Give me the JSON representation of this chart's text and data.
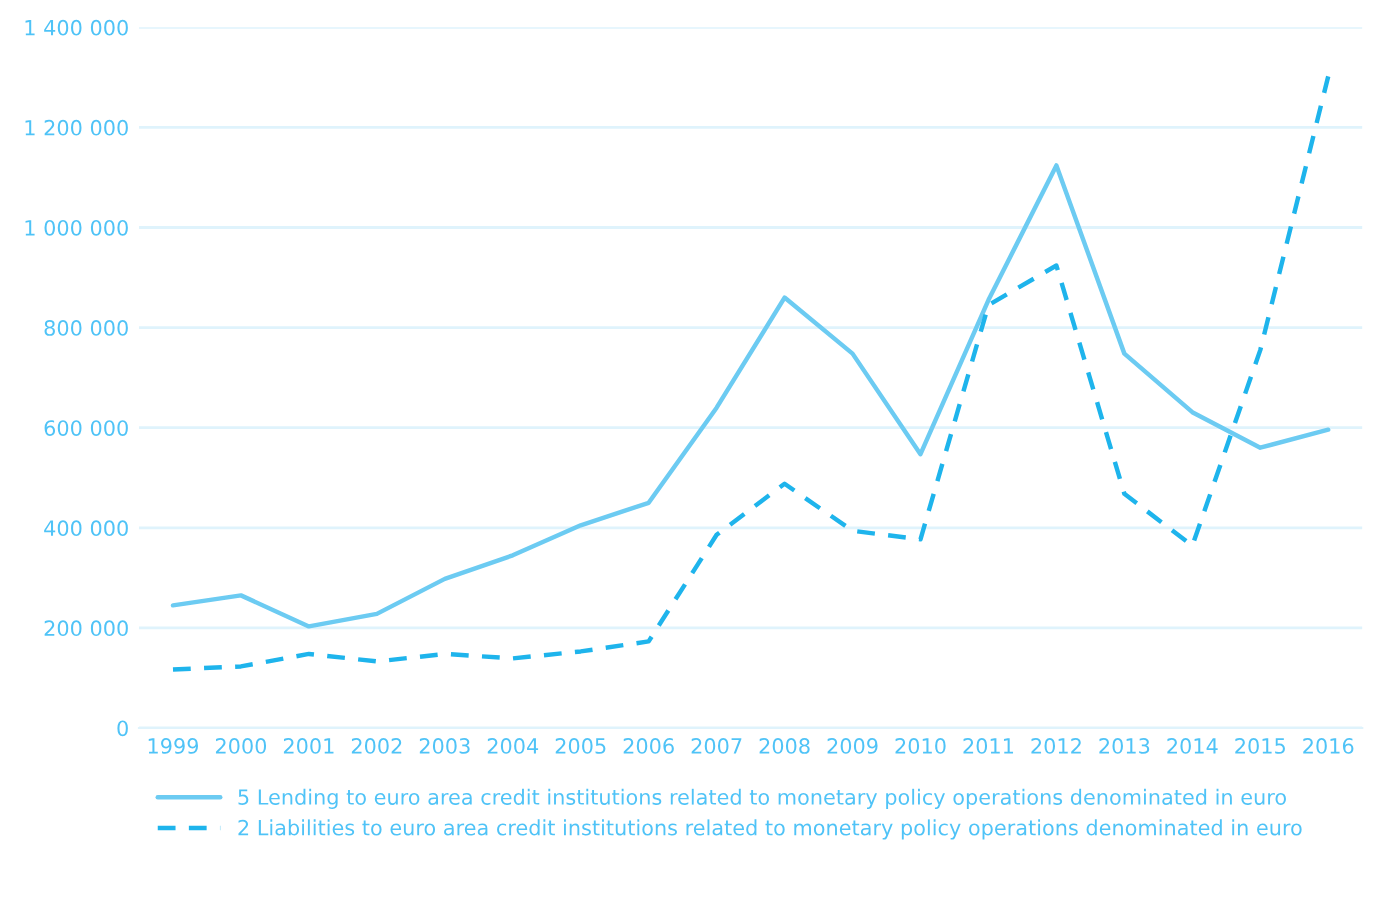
{
  "chart_data": {
    "type": "line",
    "categories": [
      "1999",
      "2000",
      "2001",
      "2002",
      "2003",
      "2004",
      "2005",
      "2006",
      "2007",
      "2008",
      "2009",
      "2010",
      "2011",
      "2012",
      "2013",
      "2014",
      "2015",
      "2016"
    ],
    "series": [
      {
        "name": "5 Lending to euro area credit institutions related to monetary policy operations denominated in euro",
        "color": "#6ccbf2",
        "line_style": "solid",
        "values": [
          245000,
          265000,
          203000,
          228000,
          298000,
          345000,
          405000,
          450000,
          640000,
          860000,
          748000,
          547000,
          855000,
          1124000,
          748000,
          631000,
          560000,
          596000
        ]
      },
      {
        "name": "2 Liabilities to euro area credit institutions related to monetary policy operations denominated in euro",
        "color": "#1eb4ec",
        "line_style": "dashed",
        "values": [
          117000,
          123000,
          148000,
          133000,
          148000,
          139000,
          153000,
          173000,
          386000,
          488000,
          394000,
          377000,
          845000,
          924000,
          468000,
          364000,
          755000,
          1302000
        ]
      }
    ],
    "ylim": [
      0,
      1400000
    ],
    "yticks": [
      {
        "value": 0,
        "label": "0"
      },
      {
        "value": 200000,
        "label": "200 000"
      },
      {
        "value": 400000,
        "label": "400 000"
      },
      {
        "value": 600000,
        "label": "600 000"
      },
      {
        "value": 800000,
        "label": "800 000"
      },
      {
        "value": 1000000,
        "label": "1 000 000"
      },
      {
        "value": 1200000,
        "label": "1 200 000"
      },
      {
        "value": 1400000,
        "label": "1 400 000"
      }
    ],
    "grid": "y",
    "legend": "bottom",
    "marker": "none"
  }
}
